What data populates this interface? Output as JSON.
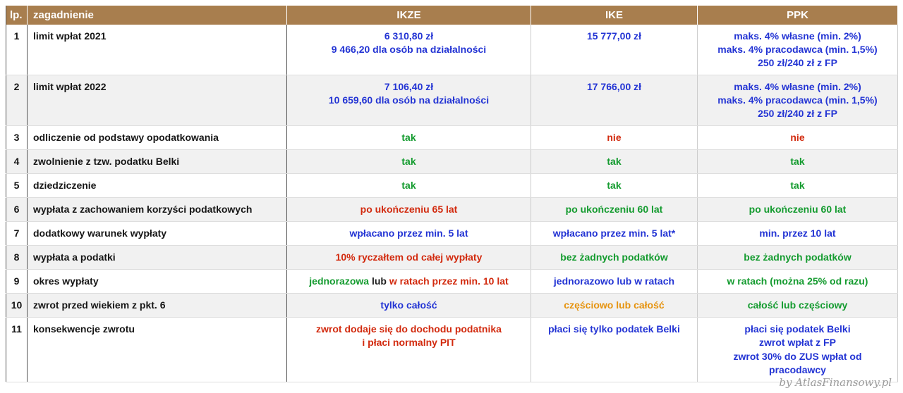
{
  "colors": {
    "header_bg": "#a87e4e",
    "header_text": "#ffffff",
    "stripe_bg": "#f1f1f1",
    "blue": "#2334d4",
    "green": "#149b2f",
    "red": "#d22a0e",
    "orange": "#e6930e",
    "black": "#1d1d1d"
  },
  "chart_data": {
    "type": "table",
    "columns": [
      "lp.",
      "zagadnienie",
      "IKZE",
      "IKE",
      "PPK"
    ],
    "rows": [
      {
        "num": "1",
        "topic": "limit wpłat 2021",
        "ikze": [
          [
            {
              "text": "6 310,80 zł",
              "color": "blue"
            }
          ],
          [
            {
              "text": "9 466,20 dla osób na działalności",
              "color": "blue"
            }
          ]
        ],
        "ike": [
          [
            {
              "text": "15 777,00 zł",
              "color": "blue"
            }
          ]
        ],
        "ppk": [
          [
            {
              "text": "maks. 4% własne (min. 2%)",
              "color": "blue"
            }
          ],
          [
            {
              "text": "maks. 4% pracodawca (min. 1,5%)",
              "color": "blue"
            }
          ],
          [
            {
              "text": "250 zł/240 zł z FP",
              "color": "blue"
            }
          ]
        ]
      },
      {
        "num": "2",
        "topic": "limit wpłat 2022",
        "ikze": [
          [
            {
              "text": "7 106,40 zł",
              "color": "blue"
            }
          ],
          [
            {
              "text": "10 659,60 dla osób na działalności",
              "color": "blue"
            }
          ]
        ],
        "ike": [
          [
            {
              "text": "17 766,00 zł",
              "color": "blue"
            }
          ]
        ],
        "ppk": [
          [
            {
              "text": "maks. 4% własne (min. 2%)",
              "color": "blue"
            }
          ],
          [
            {
              "text": "maks. 4% pracodawca (min. 1,5%)",
              "color": "blue"
            }
          ],
          [
            {
              "text": "250 zł/240 zł z FP",
              "color": "blue"
            }
          ]
        ]
      },
      {
        "num": "3",
        "topic": "odliczenie od podstawy opodatkowania",
        "ikze": [
          [
            {
              "text": "tak",
              "color": "green"
            }
          ]
        ],
        "ike": [
          [
            {
              "text": "nie",
              "color": "red"
            }
          ]
        ],
        "ppk": [
          [
            {
              "text": "nie",
              "color": "red"
            }
          ]
        ]
      },
      {
        "num": "4",
        "topic": "zwolnienie z tzw. podatku Belki",
        "ikze": [
          [
            {
              "text": "tak",
              "color": "green"
            }
          ]
        ],
        "ike": [
          [
            {
              "text": "tak",
              "color": "green"
            }
          ]
        ],
        "ppk": [
          [
            {
              "text": "tak",
              "color": "green"
            }
          ]
        ]
      },
      {
        "num": "5",
        "topic": "dziedziczenie",
        "ikze": [
          [
            {
              "text": "tak",
              "color": "green"
            }
          ]
        ],
        "ike": [
          [
            {
              "text": "tak",
              "color": "green"
            }
          ]
        ],
        "ppk": [
          [
            {
              "text": "tak",
              "color": "green"
            }
          ]
        ]
      },
      {
        "num": "6",
        "topic": "wypłata z zachowaniem korzyści podatkowych",
        "ikze": [
          [
            {
              "text": "po ukończeniu 65 lat",
              "color": "red"
            }
          ]
        ],
        "ike": [
          [
            {
              "text": "po ukończeniu 60 lat",
              "color": "green"
            }
          ]
        ],
        "ppk": [
          [
            {
              "text": "po ukończeniu 60 lat",
              "color": "green"
            }
          ]
        ]
      },
      {
        "num": "7",
        "topic": "dodatkowy warunek wypłaty",
        "ikze": [
          [
            {
              "text": "wpłacano przez min. 5 lat",
              "color": "blue"
            }
          ]
        ],
        "ike": [
          [
            {
              "text": "wpłacano przez min. 5 lat*",
              "color": "blue"
            }
          ]
        ],
        "ppk": [
          [
            {
              "text": "min. przez 10 lat",
              "color": "blue"
            }
          ]
        ]
      },
      {
        "num": "8",
        "topic": "wypłata a podatki",
        "ikze": [
          [
            {
              "text": "10% ryczałtem od całej wypłaty",
              "color": "red"
            }
          ]
        ],
        "ike": [
          [
            {
              "text": "bez żadnych podatków",
              "color": "green"
            }
          ]
        ],
        "ppk": [
          [
            {
              "text": "bez żadnych podatków",
              "color": "green"
            }
          ]
        ]
      },
      {
        "num": "9",
        "topic": "okres wypłaty",
        "ikze": [
          [
            {
              "text": "jednorazowa ",
              "color": "green"
            },
            {
              "text": "lub",
              "color": "black"
            },
            {
              "text": " w ratach przez min. 10 lat",
              "color": "red"
            }
          ]
        ],
        "ike": [
          [
            {
              "text": "jednorazowo lub w ratach",
              "color": "blue"
            }
          ]
        ],
        "ppk": [
          [
            {
              "text": "w ratach (można 25% od razu)",
              "color": "green"
            }
          ]
        ]
      },
      {
        "num": "10",
        "topic": "zwrot przed wiekiem z pkt. 6",
        "ikze": [
          [
            {
              "text": "tylko całość",
              "color": "blue"
            }
          ]
        ],
        "ike": [
          [
            {
              "text": "częściowo lub całość",
              "color": "orange"
            }
          ]
        ],
        "ppk": [
          [
            {
              "text": "całość lub częściowy",
              "color": "green"
            }
          ]
        ]
      },
      {
        "num": "11",
        "topic": "konsekwencje zwrotu",
        "ikze": [
          [
            {
              "text": "zwrot dodaje się do dochodu podatnika",
              "color": "red"
            }
          ],
          [
            {
              "text": "i płaci normalny PIT",
              "color": "red"
            }
          ]
        ],
        "ike": [
          [
            {
              "text": "płaci się tylko podatek Belki",
              "color": "blue"
            }
          ]
        ],
        "ppk": [
          [
            {
              "text": "płaci się podatek Belki",
              "color": "blue"
            }
          ],
          [
            {
              "text": "zwrot wpłat z FP",
              "color": "blue"
            }
          ],
          [
            {
              "text": "zwrot 30% do ZUS wpłat od",
              "color": "blue"
            }
          ],
          [
            {
              "text": "pracodawcy",
              "color": "blue"
            }
          ]
        ]
      }
    ]
  },
  "footer": {
    "credit": "by AtlasFinansowy.pl"
  }
}
